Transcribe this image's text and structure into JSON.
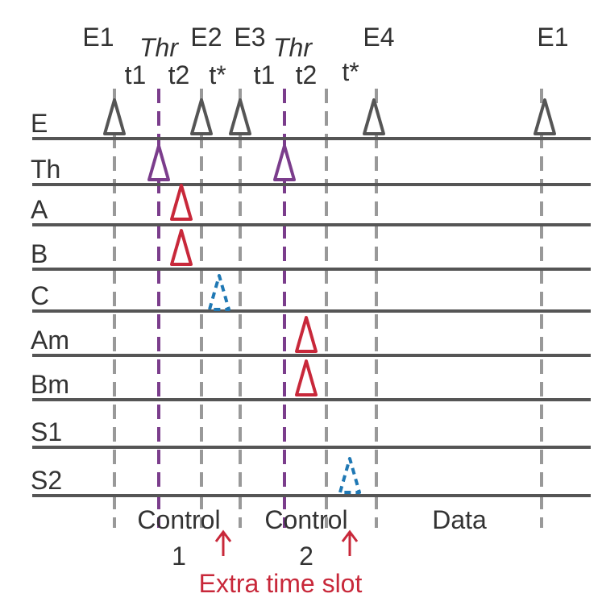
{
  "event_labels": [
    "E1",
    "Thr",
    "E2",
    "E3",
    "Thr",
    "E4",
    "E1"
  ],
  "interval_labels": [
    "t1",
    "t2",
    "t*",
    "t1",
    "t2",
    "t*"
  ],
  "rows": [
    "E",
    "Th",
    "A",
    "B",
    "C",
    "Am",
    "Bm",
    "S1",
    "S2"
  ],
  "segments": [
    {
      "name": "Control",
      "number": "1"
    },
    {
      "name": "Control",
      "number": "2"
    },
    {
      "name": "Data"
    }
  ],
  "annotation": "Extra time slot"
}
